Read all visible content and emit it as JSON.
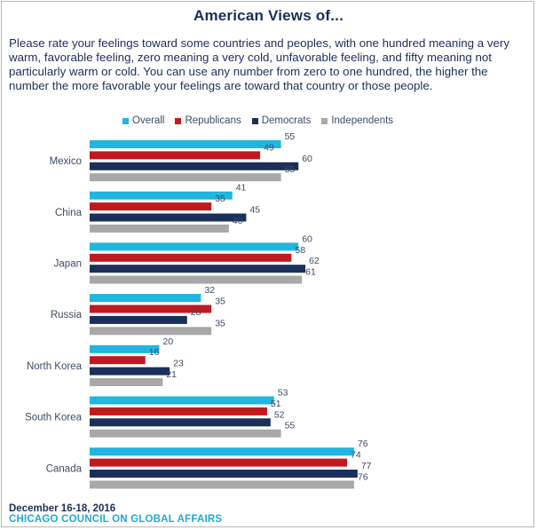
{
  "chart_data": {
    "type": "bar",
    "orientation": "horizontal",
    "title": "American Views of...",
    "subtitle": "Please rate your feelings toward some countries and peoples, with one hundred meaning a very warm, favorable feeling, zero meaning a very cold, unfavorable feeling, and fifty meaning not particularly warm or cold.  You can use any number from zero to one hundred, the higher the number the more favorable your feelings are toward that country or those people.",
    "categories": [
      "Mexico",
      "China",
      "Japan",
      "Russia",
      "North Korea",
      "South Korea",
      "Canada"
    ],
    "series": [
      {
        "name": "Overall",
        "color": "#1fb6e0",
        "values": [
          55,
          41,
          60,
          32,
          20,
          53,
          76
        ]
      },
      {
        "name": "Republicans",
        "color": "#c01a1e",
        "values": [
          49,
          35,
          58,
          35,
          16,
          51,
          74
        ]
      },
      {
        "name": "Democrats",
        "color": "#1a2f5a",
        "values": [
          60,
          45,
          62,
          28,
          23,
          52,
          77
        ]
      },
      {
        "name": "Independents",
        "color": "#a8a8a8",
        "values": [
          55,
          40,
          61,
          35,
          21,
          55,
          76
        ]
      }
    ],
    "xlim": [
      0,
      100
    ],
    "grid": false,
    "legend_position": "top"
  },
  "footer": {
    "date": "December 16-18, 2016",
    "source": "CHICAGO COUNCIL ON GLOBAL AFFAIRS"
  }
}
